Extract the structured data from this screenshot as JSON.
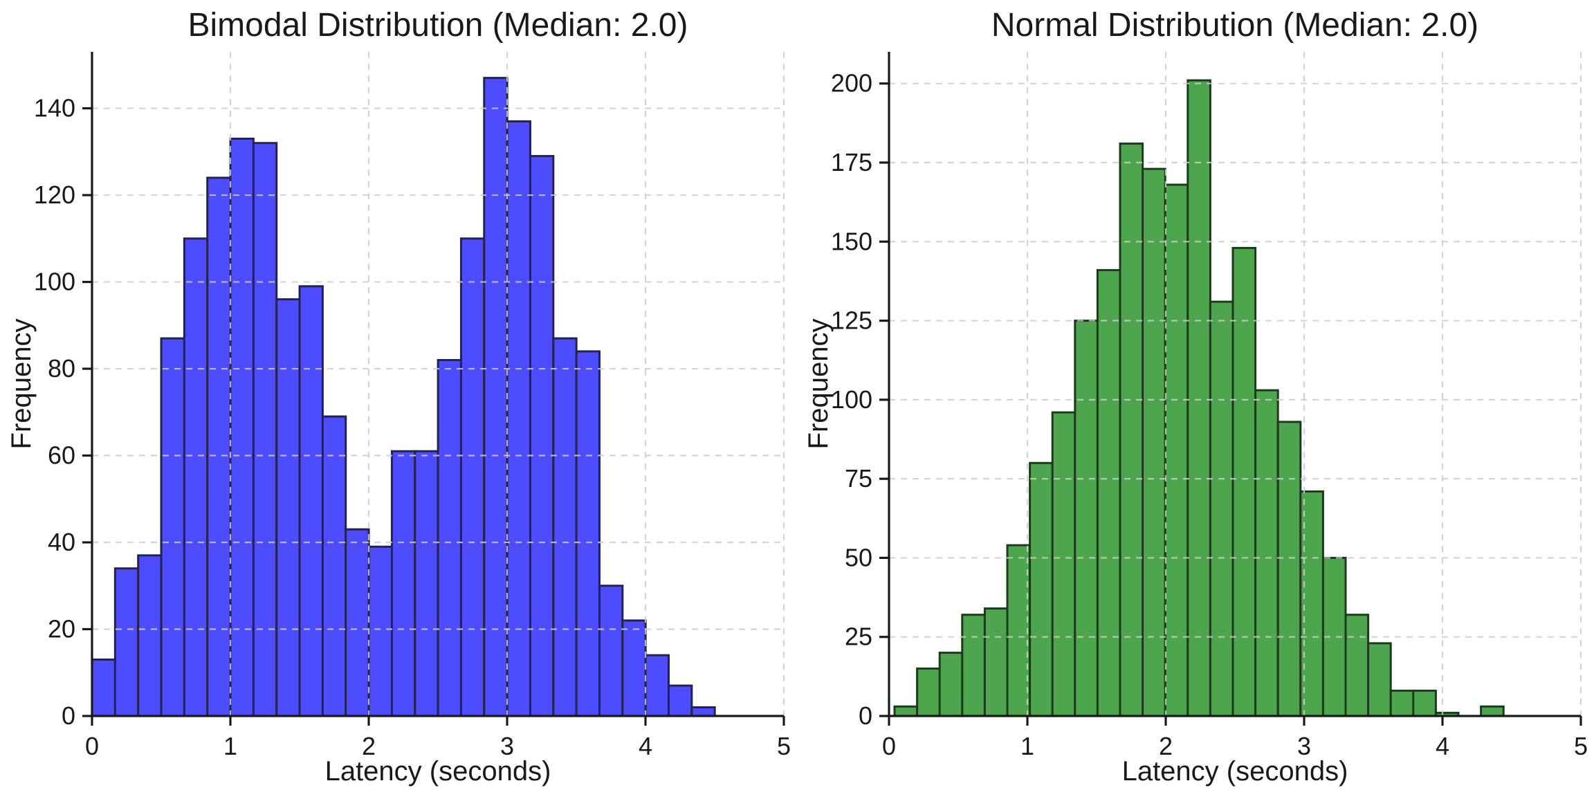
{
  "figure": {
    "background_color": "#ffffff",
    "grid_color": "#cccccc",
    "axis_color": "#191919",
    "text_color": "#191919"
  },
  "chart_data": [
    {
      "type": "bar",
      "kind": "histogram",
      "title": "Bimodal Distribution (Median: 2.0)",
      "xlabel": "Latency (seconds)",
      "ylabel": "Frequency",
      "bar_fill": "#4D4DFF",
      "bar_edge": "#23234D",
      "xlim": [
        0,
        5
      ],
      "ylim": [
        0,
        153
      ],
      "xticks": [
        0,
        1,
        2,
        3,
        4,
        5
      ],
      "yticks": [
        0,
        20,
        40,
        60,
        80,
        100,
        120,
        140
      ],
      "grid": "dashed-over-bars",
      "legend_position": "none",
      "bins": {
        "start": 0.0,
        "width": 0.1667
      },
      "values": [
        13,
        34,
        37,
        87,
        110,
        124,
        133,
        132,
        96,
        99,
        69,
        43,
        39,
        61,
        61,
        82,
        110,
        147,
        137,
        129,
        87,
        84,
        30,
        22,
        14,
        7,
        2
      ]
    },
    {
      "type": "bar",
      "kind": "histogram",
      "title": "Normal Distribution (Median: 2.0)",
      "xlabel": "Latency (seconds)",
      "ylabel": "Frequency",
      "bar_fill": "#4DA64D",
      "bar_edge": "#1D3A1D",
      "xlim": [
        0,
        5
      ],
      "ylim": [
        0,
        210
      ],
      "xticks": [
        0,
        1,
        2,
        3,
        4,
        5
      ],
      "yticks": [
        0,
        25,
        50,
        75,
        100,
        125,
        150,
        175,
        200
      ],
      "grid": "dashed-over-bars",
      "legend_position": "none",
      "bins": {
        "start": 0.04,
        "width": 0.163
      },
      "values": [
        3,
        15,
        20,
        32,
        34,
        54,
        80,
        96,
        125,
        141,
        181,
        173,
        168,
        201,
        131,
        148,
        103,
        93,
        71,
        50,
        32,
        23,
        8,
        8,
        1,
        0,
        3
      ]
    }
  ]
}
